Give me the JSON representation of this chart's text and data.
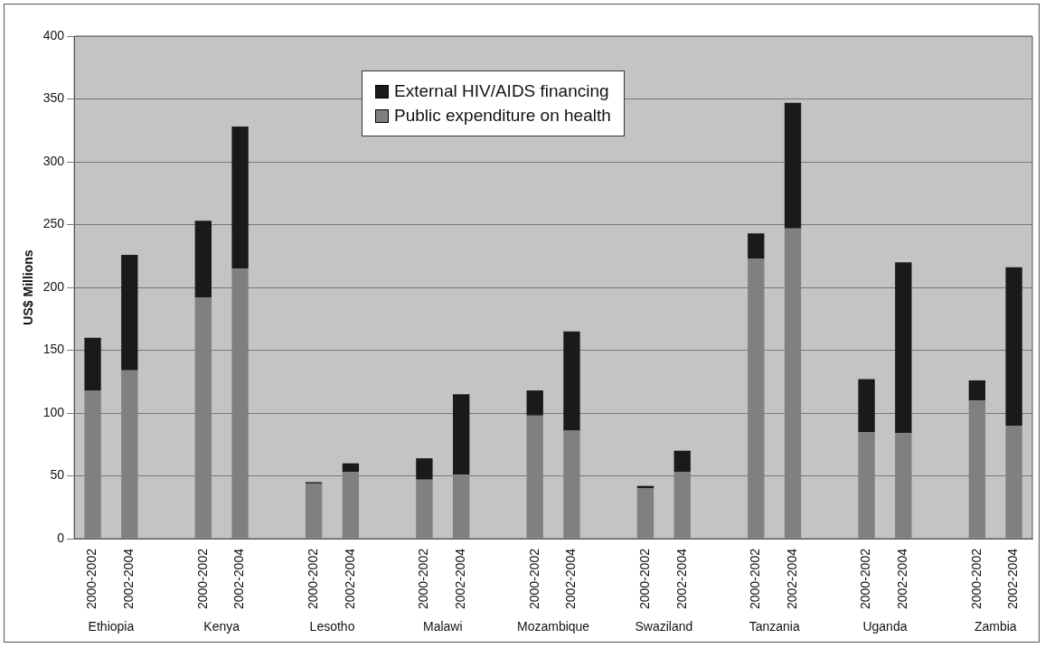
{
  "chart_data": {
    "type": "bar",
    "stacked": true,
    "ylabel": "US$ Millions",
    "categories": [
      "2000-2002",
      "2002-2004",
      null,
      "2000-2002",
      "2002-2004",
      null,
      "2000-2002",
      "2002-2004",
      null,
      "2000-2002",
      "2002-2004",
      null,
      "2000-2002",
      "2002-2004",
      null,
      "2000-2002",
      "2002-2004",
      null,
      "2000-2002",
      "2002-2004",
      null,
      "2000-2002",
      "2002-2004",
      null,
      "2000-2002",
      "2002-2004"
    ],
    "series": [
      {
        "name": "Public expenditure on health",
        "color": "#808080",
        "values": [
          118,
          134,
          null,
          192,
          215,
          null,
          44,
          53,
          null,
          47,
          51,
          null,
          98,
          86,
          null,
          40,
          53,
          null,
          223,
          247,
          null,
          85,
          84,
          null,
          110,
          90
        ]
      },
      {
        "name": "External HIV/AIDS financing",
        "color": "#1a1a1a",
        "values": [
          42,
          92,
          null,
          61,
          113,
          null,
          1,
          7,
          null,
          17,
          64,
          null,
          20,
          79,
          null,
          2,
          17,
          null,
          20,
          100,
          null,
          42,
          136,
          null,
          16,
          126
        ]
      }
    ],
    "annotations": [
      "Ethiopia",
      "Kenya",
      "Lesotho",
      "Malawi",
      "Mozambique",
      "Swaziland",
      "Tanzania",
      "Uganda",
      "Zambia"
    ],
    "ylim": [
      0,
      400
    ],
    "yticks": [
      0,
      50,
      100,
      150,
      200,
      250,
      300,
      350,
      400
    ],
    "grid": "y",
    "legend": "top"
  }
}
